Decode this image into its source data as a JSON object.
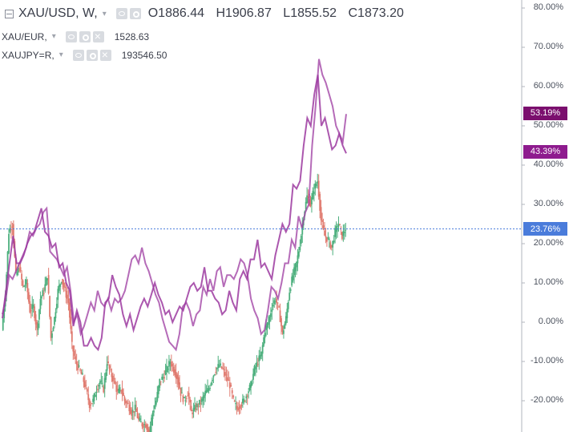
{
  "legend": {
    "main": {
      "symbol": "XAU/USD, W,",
      "open": "O1886.44",
      "high": "H1906.87",
      "low": "L1855.52",
      "close": "C1873.20"
    },
    "series": [
      {
        "symbol": "XAU/EUR,",
        "value": "1528.63"
      },
      {
        "symbol": "XAUJPY=R,",
        "value": "193546.50"
      }
    ]
  },
  "colors": {
    "up": "#4caf7d",
    "down": "#e07a6f",
    "eur": "#9c3aa0",
    "jpy": "#9c3aa0",
    "tag_eur": "#7b0f6e",
    "tag_jpy": "#8e1b8e",
    "tag_usd": "#4a7cdb",
    "price_line": "#4a7cdb",
    "mid_series": "#3a3e4a"
  },
  "chart_data": {
    "type": "line",
    "y_unit": "%",
    "ylim": [
      -28,
      82
    ],
    "y_ticks": [
      "80.00%",
      "70.00%",
      "60.00%",
      "50.00%",
      "40.00%",
      "30.00%",
      "20.00%",
      "10.00%",
      "0.00%",
      "-10.00%",
      "-20.00%"
    ],
    "grid": false,
    "series": [
      {
        "name": "XAU/USD",
        "style": "candles",
        "current_label": "23.76%",
        "current": 23.76,
        "values": [
          -2,
          7,
          23,
          25,
          12,
          14,
          9,
          10,
          3,
          4,
          -2,
          6,
          8,
          12,
          -4,
          1,
          8,
          11,
          8,
          5,
          -6,
          -10,
          -12,
          -14,
          -17,
          -21,
          -20,
          -17,
          -15,
          -17,
          -10,
          -13,
          -15,
          -18,
          -17,
          -20,
          -21,
          -23,
          -22,
          -25,
          -26,
          -26,
          -28,
          -23,
          -20,
          -15,
          -14,
          -12,
          -10,
          -12,
          -14,
          -18,
          -20,
          -18,
          -23,
          -22,
          -21,
          -20,
          -18,
          -17,
          -14,
          -12,
          -11,
          -12,
          -14,
          -16,
          -20,
          -22,
          -21,
          -20,
          -18,
          -16,
          -12,
          -10,
          -8,
          -2,
          0,
          4,
          6,
          3,
          -3,
          1,
          8,
          12,
          15,
          20,
          27,
          32,
          30,
          34,
          36,
          26,
          22,
          21,
          19,
          23,
          25,
          22,
          24
        ]
      },
      {
        "name": "XAU/EUR",
        "style": "line",
        "current_label": "43.39%",
        "current": 43.39,
        "values": [
          1,
          8,
          15,
          22,
          15,
          15,
          17,
          20,
          22,
          23,
          26,
          29,
          23,
          22,
          19,
          20,
          14,
          15,
          10,
          8,
          -1,
          3,
          0,
          -6,
          -6,
          -4,
          -6,
          -7,
          -4,
          5,
          6,
          12,
          9,
          7,
          2,
          -1,
          2,
          -2,
          1,
          4,
          6,
          4,
          7,
          10,
          7,
          5,
          2,
          3,
          0,
          2,
          4,
          3,
          6,
          9,
          10,
          8,
          9,
          14,
          8,
          8,
          6,
          5,
          2,
          3,
          8,
          5,
          3,
          11,
          13,
          11,
          16,
          16,
          21,
          14,
          15,
          13,
          11,
          17,
          21,
          25,
          23,
          25,
          35,
          34,
          36,
          45,
          52,
          50,
          58,
          63,
          50,
          52,
          48,
          44,
          45,
          48,
          45,
          43
        ]
      },
      {
        "name": "XAUJPY=R",
        "style": "line",
        "current_label": "53.19%",
        "current": 53.19,
        "values": [
          2,
          6,
          12,
          11,
          13,
          15,
          17,
          19,
          23,
          22,
          24,
          25,
          28,
          29,
          18,
          17,
          16,
          14,
          12,
          14,
          8,
          0,
          2,
          -3,
          -1,
          2,
          5,
          3,
          8,
          5,
          4,
          6,
          3,
          6,
          5,
          6,
          8,
          12,
          16,
          17,
          15,
          19,
          15,
          13,
          10,
          7,
          5,
          1,
          -2,
          -5,
          -6,
          -7,
          -3,
          4,
          5,
          3,
          -1,
          2,
          3,
          9,
          7,
          11,
          8,
          13,
          14,
          9,
          12,
          12,
          11,
          13,
          16,
          15,
          12,
          6,
          3,
          1,
          -3,
          -2,
          3,
          9,
          8,
          6,
          10,
          15,
          15,
          21,
          19,
          27,
          24,
          28,
          30,
          45,
          55,
          67,
          63,
          61,
          58,
          55,
          50,
          48,
          46,
          53
        ]
      }
    ]
  }
}
